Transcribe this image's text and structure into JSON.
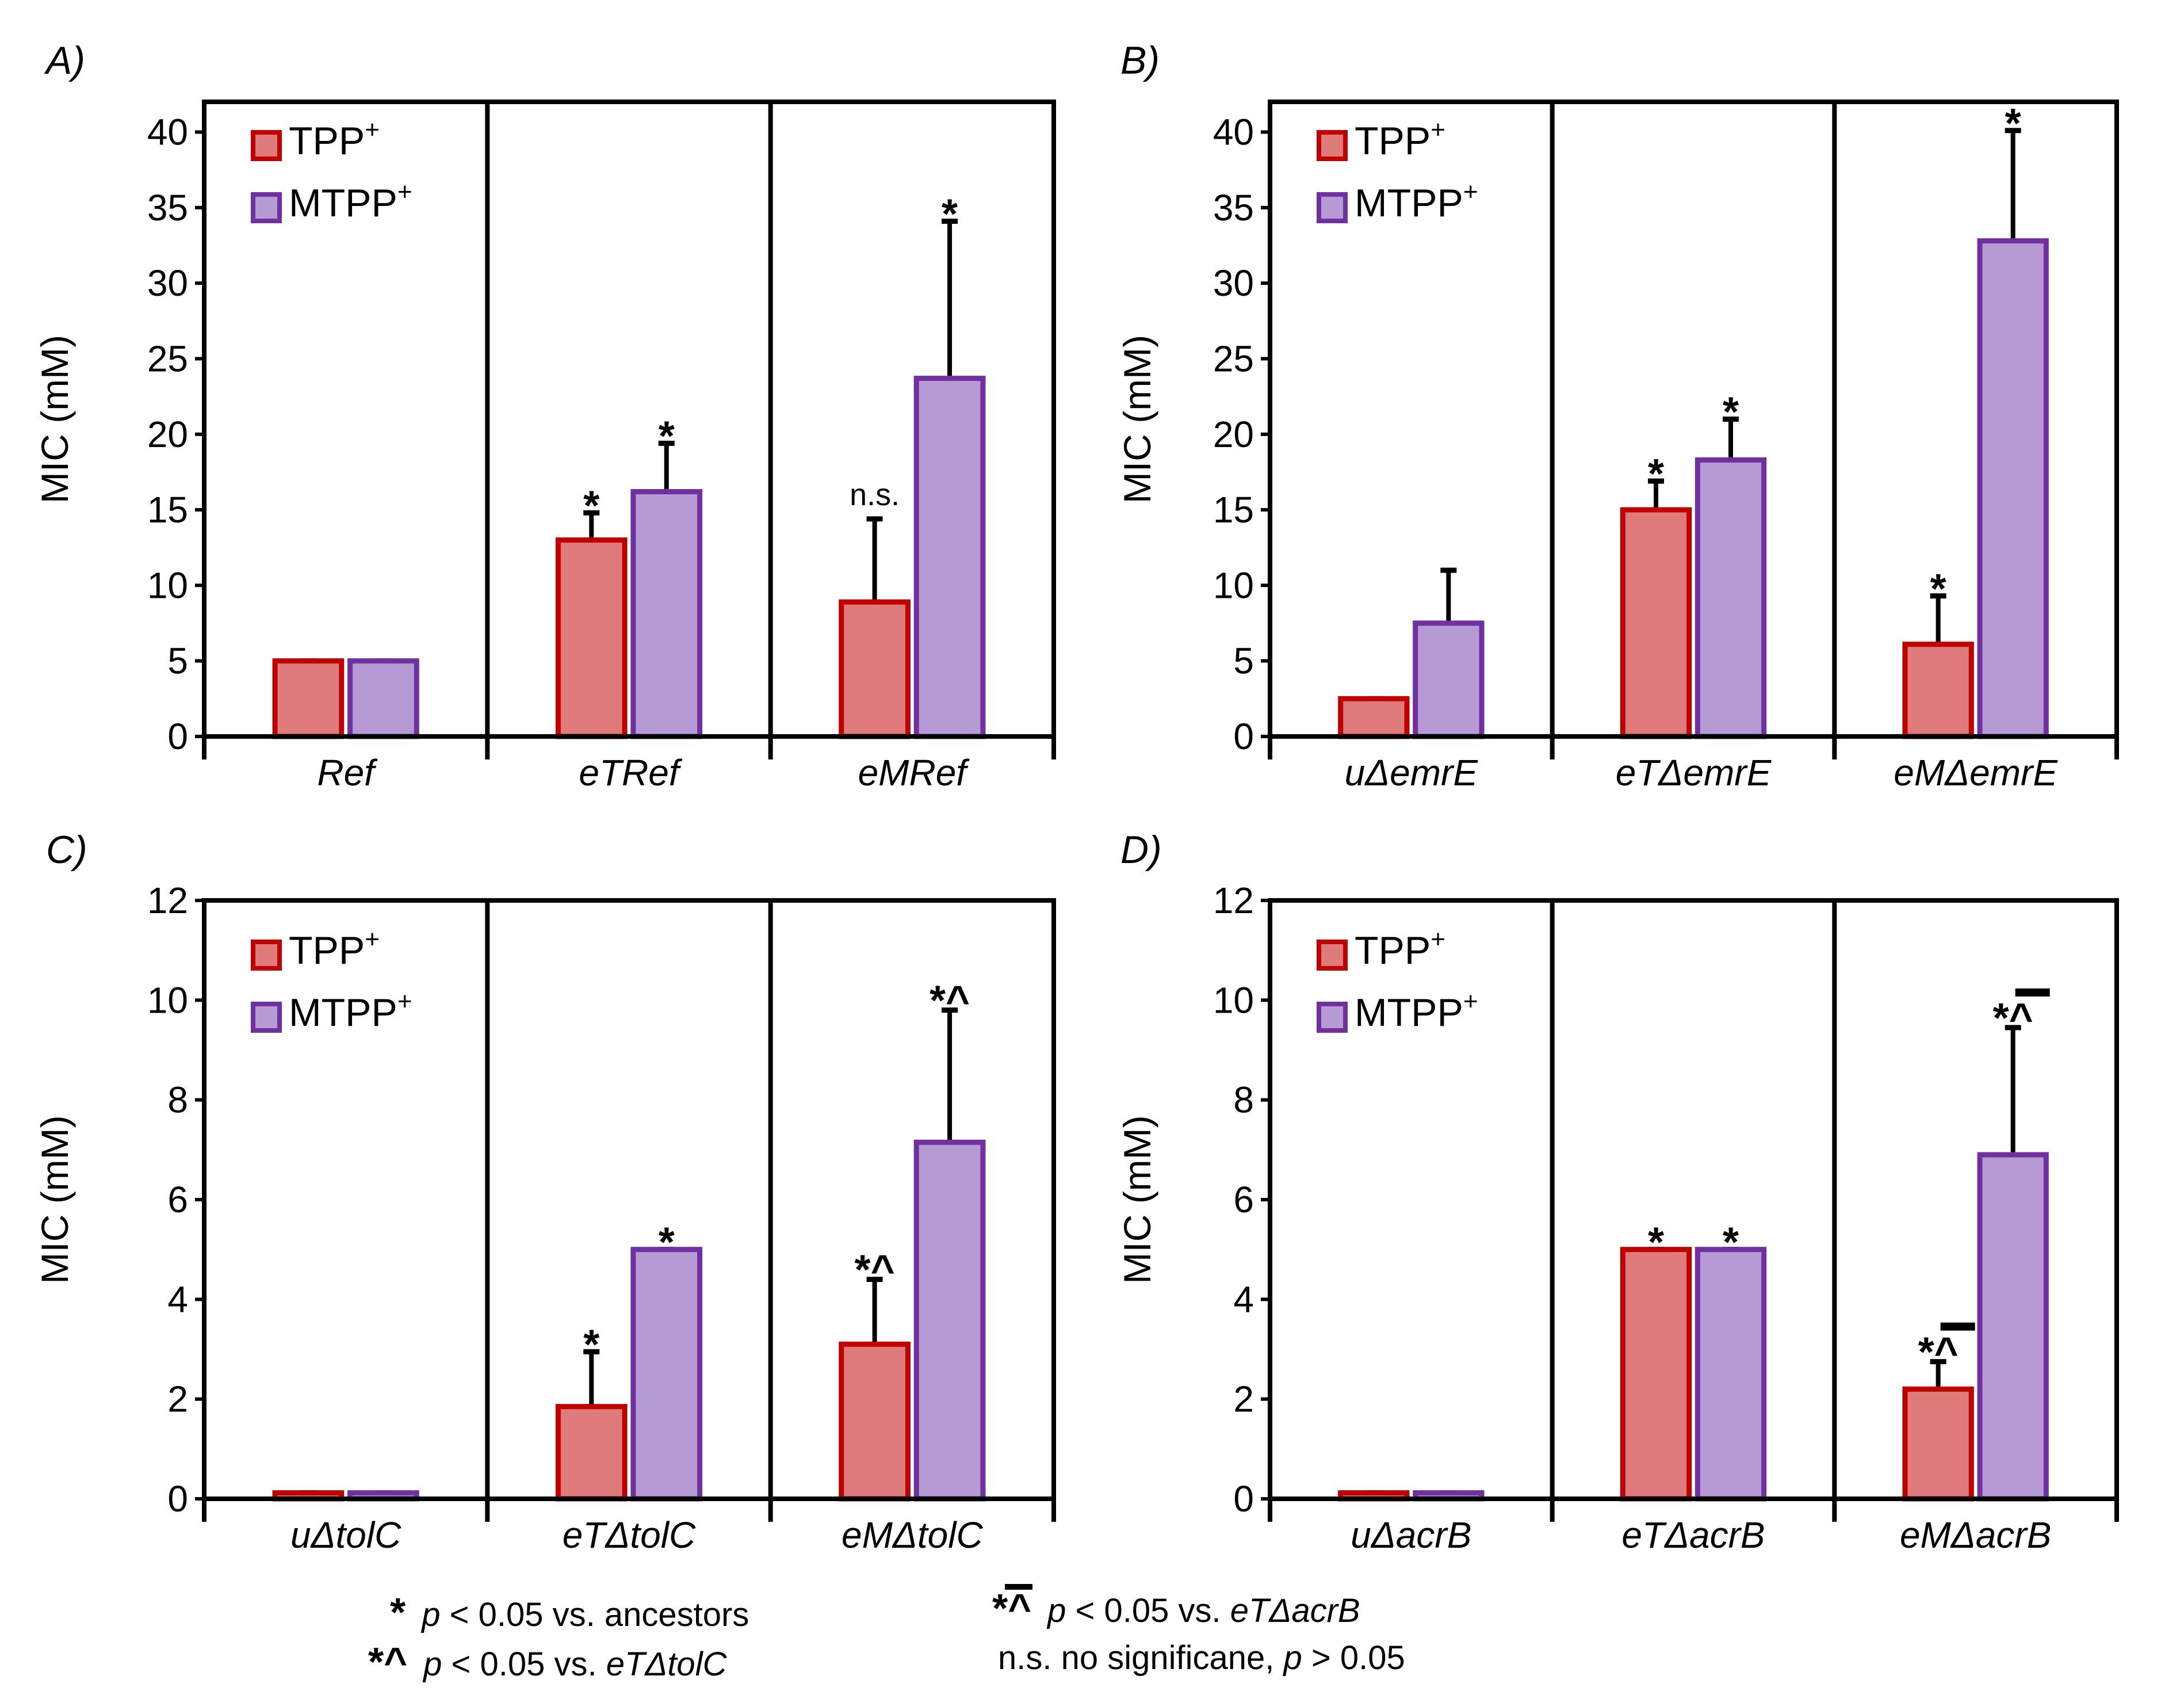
{
  "colors": {
    "tpp_fill": "#E07B7B",
    "tpp_stroke": "#C00000",
    "mtpp_fill": "#B69AD4",
    "mtpp_stroke": "#7030A0",
    "axis": "#000000"
  },
  "legend": {
    "tpp": "TPP",
    "tpp_sup": "+",
    "mtpp": "MTPP",
    "mtpp_sup": "+"
  },
  "chart_data": [
    {
      "panel": "A)",
      "type": "bar",
      "ylabel": "MIC (mM)",
      "ylim": [
        0,
        42
      ],
      "yticks": [
        "0",
        "5",
        "10",
        "15",
        "20",
        "25",
        "30",
        "35",
        "40"
      ],
      "categories": [
        "Ref",
        "eTRef",
        "eMRef"
      ],
      "series": [
        {
          "name": "TPP+",
          "values": [
            5,
            13,
            8.9
          ],
          "errors": [
            0,
            1.8,
            5.5
          ],
          "labels": [
            "",
            "*",
            "n.s."
          ]
        },
        {
          "name": "MTPP+",
          "values": [
            5,
            16.2,
            23.7
          ],
          "errors": [
            0,
            3.2,
            10.4
          ],
          "labels": [
            "",
            "*",
            "*"
          ]
        }
      ]
    },
    {
      "panel": "B)",
      "type": "bar",
      "ylabel": "MIC (mM)",
      "ylim": [
        0,
        42
      ],
      "yticks": [
        "0",
        "5",
        "10",
        "15",
        "20",
        "25",
        "30",
        "35",
        "40"
      ],
      "categories": [
        "uΔemrE",
        "eTΔemrE",
        "eMΔemrE"
      ],
      "series": [
        {
          "name": "TPP+",
          "values": [
            2.5,
            15,
            6.1
          ],
          "errors": [
            0,
            1.9,
            3.2
          ],
          "labels": [
            "",
            "*",
            "*"
          ]
        },
        {
          "name": "MTPP+",
          "values": [
            7.5,
            18.3,
            32.8
          ],
          "errors": [
            3.5,
            2.7,
            7.3
          ],
          "labels": [
            "",
            "*",
            "*"
          ]
        }
      ]
    },
    {
      "panel": "C)",
      "type": "bar",
      "ylabel": "MIC (mM)",
      "ylim": [
        0,
        12
      ],
      "yticks": [
        "0",
        "2",
        "4",
        "6",
        "8",
        "10",
        "12"
      ],
      "categories": [
        "uΔtolC",
        "eTΔtolC",
        "eMΔtolC"
      ],
      "series": [
        {
          "name": "TPP+",
          "values": [
            0.12,
            1.85,
            3.1
          ],
          "errors": [
            0,
            1.1,
            1.3
          ],
          "labels": [
            "",
            "*",
            "*^"
          ]
        },
        {
          "name": "MTPP+",
          "values": [
            0.12,
            5,
            7.15
          ],
          "errors": [
            0,
            0,
            2.65
          ],
          "labels": [
            "",
            "*",
            "*^"
          ]
        }
      ]
    },
    {
      "panel": "D)",
      "type": "bar",
      "ylabel": "MIC (mM)",
      "ylim": [
        0,
        12
      ],
      "yticks": [
        "0",
        "2",
        "4",
        "6",
        "8",
        "10",
        "12"
      ],
      "categories": [
        "uΔacrB",
        "eTΔacrB",
        "eMΔacrB"
      ],
      "series": [
        {
          "name": "TPP+",
          "values": [
            0.12,
            5,
            2.2
          ],
          "errors": [
            0,
            0,
            0.55
          ],
          "labels": [
            "",
            "*",
            "*^bar"
          ]
        },
        {
          "name": "MTPP+",
          "values": [
            0.12,
            5,
            6.9
          ],
          "errors": [
            0,
            0,
            2.55
          ],
          "labels": [
            "",
            "*",
            "*^bar"
          ]
        }
      ]
    }
  ],
  "footnotes": {
    "star_symbol": "*",
    "star_text_pre": "p",
    "star_text_post": " < 0.05 vs. ancestors",
    "caret_symbol": "*^",
    "caret_text_pre": "p",
    "caret_text_mid": " < 0.05 vs. ",
    "caret_text_ref": "eTΔtolC",
    "bar_symbol": "*^",
    "bar_text_pre": "p",
    "bar_text_mid": " < 0.05 vs. ",
    "bar_text_ref": "eTΔacrB",
    "ns_text_pre": "n.s. no significane, ",
    "ns_text_p": "p",
    "ns_text_post": " > 0.05"
  }
}
